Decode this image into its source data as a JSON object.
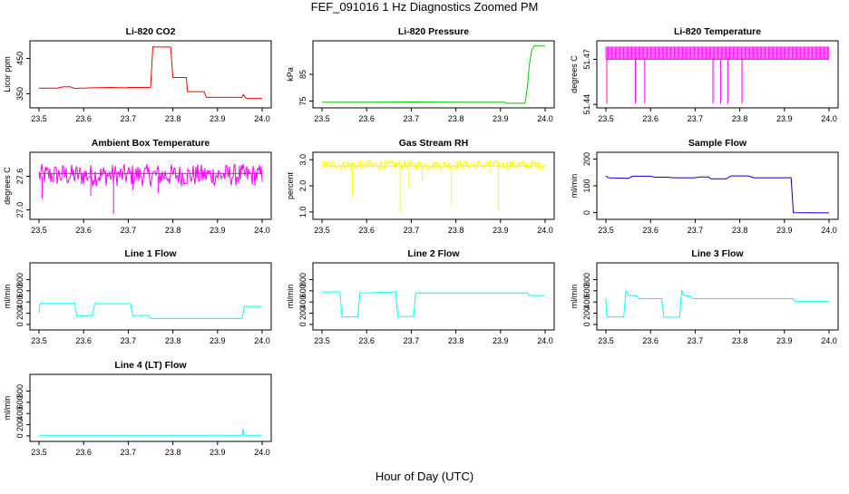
{
  "page": {
    "title": "FEF_091016  1 Hz Diagnostics Zoomed PM",
    "xlabel": "Hour of Day (UTC)"
  },
  "chart_data": [
    {
      "type": "line",
      "title": "Li-820 CO2",
      "ylabel": "Licor ppm",
      "color": "#ff0000",
      "xlim": [
        23.5,
        24.0
      ],
      "ylim": [
        318,
        492
      ],
      "xticks": [
        23.5,
        23.6,
        23.7,
        23.8,
        23.9,
        24.0
      ],
      "yticks": [
        350,
        450
      ],
      "series": [
        {
          "x": [
            23.5,
            23.54,
            23.555,
            23.57,
            23.58,
            23.59,
            23.6,
            23.62,
            23.66,
            23.7,
            23.7,
            23.75,
            23.755,
            23.795,
            23.8,
            23.83,
            23.833,
            23.87,
            23.875,
            23.955,
            23.958,
            23.962,
            23.965,
            23.97,
            24.0
          ],
          "y": [
            366,
            366,
            370,
            370,
            365,
            366,
            366,
            367,
            368,
            367,
            368,
            368,
            482,
            482,
            396,
            396,
            356,
            356,
            340,
            340,
            348,
            340,
            337,
            337,
            337
          ]
        }
      ]
    },
    {
      "type": "line",
      "title": "Li-820 Pressure",
      "ylabel": "kPa",
      "color": "#00cc00",
      "xlim": [
        23.5,
        24.0
      ],
      "ylim": [
        73.5,
        96.5
      ],
      "xticks": [
        23.5,
        23.6,
        23.7,
        23.8,
        23.9,
        24.0
      ],
      "yticks": [
        75,
        85
      ],
      "series": [
        {
          "x": [
            23.5,
            23.6,
            23.7,
            23.8,
            23.9,
            23.91,
            23.912,
            23.955,
            23.96,
            23.965,
            23.97,
            23.975,
            24.0
          ],
          "y": [
            74.6,
            74.6,
            74.7,
            74.6,
            74.6,
            74.6,
            74.2,
            74.2,
            80,
            89,
            94,
            95.6,
            95.6
          ]
        }
      ]
    },
    {
      "type": "line",
      "title": "Li-820 Temperature",
      "ylabel": "degrees C",
      "color": "#ff00ff",
      "xlim": [
        23.5,
        24.0
      ],
      "ylim": [
        51.4395,
        51.4805
      ],
      "xticks": [
        23.5,
        23.6,
        23.7,
        23.8,
        23.9,
        24.0
      ],
      "yticks": [
        51.44,
        51.47
      ],
      "series": [
        {
          "x": [
            23.5,
            24.0
          ],
          "y": [
            51.47,
            51.47
          ]
        }
      ]
    },
    {
      "type": "line",
      "title": "Ambient Box Temperature",
      "ylabel": "degrees C",
      "color": "#ff00ff",
      "xlim": [
        23.5,
        24.0
      ],
      "ylim": [
        26.88,
        27.98
      ],
      "xticks": [
        23.5,
        23.6,
        23.7,
        23.8,
        23.9,
        24.0
      ],
      "yticks": [
        27.0,
        27.6
      ],
      "series": [
        {
          "x": [
            23.5,
            24.0
          ],
          "y": [
            27.65,
            27.65
          ]
        }
      ]
    },
    {
      "type": "line",
      "title": "Gas Stream RH",
      "ylabel": "percent",
      "color": "#ffff00",
      "xlim": [
        23.5,
        24.0
      ],
      "ylim": [
        0.82,
        3.18
      ],
      "xticks": [
        23.5,
        23.6,
        23.7,
        23.8,
        23.9,
        24.0
      ],
      "yticks": [
        1.0,
        2.0,
        3.0
      ],
      "series": [
        {
          "x": [
            23.5,
            24.0
          ],
          "y": [
            2.75,
            2.75
          ]
        }
      ]
    },
    {
      "type": "line",
      "title": "Sample Flow",
      "ylabel": "ml/min",
      "color": "#0000cc",
      "xlim": [
        23.5,
        24.0
      ],
      "ylim": [
        -15,
        215
      ],
      "xticks": [
        23.5,
        23.6,
        23.7,
        23.8,
        23.9,
        24.0
      ],
      "yticks": [
        0,
        100,
        200
      ],
      "series": [
        {
          "x": [
            23.5,
            23.505,
            23.55,
            23.56,
            23.6,
            23.61,
            23.64,
            23.65,
            23.7,
            23.71,
            23.73,
            23.735,
            23.77,
            23.78,
            23.82,
            23.83,
            23.915,
            23.92,
            24.0
          ],
          "y": [
            137,
            130,
            128,
            136,
            136,
            132,
            132,
            130,
            130,
            133,
            133,
            126,
            126,
            137,
            137,
            130,
            130,
            0,
            -1
          ]
        }
      ]
    },
    {
      "type": "line",
      "title": "Line 1 Flow",
      "ylabel": "ml/min",
      "color": "#00ffff",
      "xlim": [
        23.5,
        24.0
      ],
      "ylim": [
        -50,
        1050
      ],
      "xticks": [
        23.5,
        23.6,
        23.7,
        23.8,
        23.9,
        24.0
      ],
      "yticks": [
        0,
        200,
        400,
        600,
        800
      ],
      "series": [
        {
          "x": [
            23.5,
            23.502,
            23.505,
            23.58,
            23.585,
            23.62,
            23.625,
            23.705,
            23.71,
            23.745,
            23.75,
            23.955,
            23.96,
            24.0
          ],
          "y": [
            200,
            360,
            375,
            375,
            155,
            155,
            370,
            370,
            160,
            160,
            105,
            105,
            320,
            320
          ]
        }
      ]
    },
    {
      "type": "line",
      "title": "Line 2 Flow",
      "ylabel": "ml/min",
      "color": "#00ffff",
      "xlim": [
        23.5,
        24.0
      ],
      "ylim": [
        -50,
        1050
      ],
      "xticks": [
        23.5,
        23.6,
        23.7,
        23.8,
        23.9,
        24.0
      ],
      "yticks": [
        0,
        200,
        400,
        600,
        800
      ],
      "series": [
        {
          "x": [
            23.5,
            23.54,
            23.545,
            23.58,
            23.585,
            23.665,
            23.67,
            23.705,
            23.71,
            23.96,
            23.965,
            24.0
          ],
          "y": [
            580,
            580,
            135,
            135,
            560,
            580,
            140,
            140,
            560,
            560,
            515,
            515
          ]
        }
      ]
    },
    {
      "type": "line",
      "title": "Line 3 Flow",
      "ylabel": "ml/min",
      "color": "#00ffff",
      "xlim": [
        23.5,
        24.0
      ],
      "ylim": [
        -50,
        1050
      ],
      "xticks": [
        23.5,
        23.6,
        23.7,
        23.8,
        23.9,
        24.0
      ],
      "yticks": [
        0,
        200,
        400,
        600,
        800
      ],
      "series": [
        {
          "x": [
            23.5,
            23.502,
            23.505,
            23.54,
            23.545,
            23.55,
            23.57,
            23.575,
            23.625,
            23.63,
            23.665,
            23.67,
            23.675,
            23.69,
            23.695,
            23.92,
            23.925,
            24.0
          ],
          "y": [
            470,
            150,
            135,
            135,
            600,
            520,
            510,
            460,
            460,
            130,
            130,
            600,
            520,
            500,
            460,
            460,
            410,
            410
          ]
        }
      ]
    },
    {
      "type": "line",
      "title": "Line 4 (LT) Flow",
      "ylabel": "ml/min",
      "color": "#00ffff",
      "xlim": [
        23.5,
        24.0
      ],
      "ylim": [
        -50,
        1050
      ],
      "xticks": [
        23.5,
        23.6,
        23.7,
        23.8,
        23.9,
        24.0
      ],
      "yticks": [
        0,
        200,
        400,
        600,
        800
      ],
      "series": [
        {
          "x": [
            23.5,
            23.955,
            23.957,
            23.959,
            23.961,
            24.0
          ],
          "y": [
            10,
            10,
            130,
            15,
            10,
            10
          ]
        }
      ]
    }
  ]
}
